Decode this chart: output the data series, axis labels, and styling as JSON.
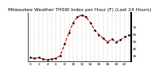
{
  "title": "Milwaukee Weather THSW Index per Hour (F) (Last 24 Hours)",
  "title_fontsize": 4.2,
  "background_color": "#ffffff",
  "plot_bg_color": "#ffffff",
  "line_color": "#cc0000",
  "marker_color": "#000000",
  "grid_color": "#999999",
  "hours": [
    0,
    1,
    2,
    3,
    4,
    5,
    6,
    7,
    8,
    9,
    10,
    11,
    12,
    13,
    14,
    15,
    16,
    17,
    18,
    19,
    20,
    21,
    22,
    23
  ],
  "values": [
    33,
    32,
    33,
    31,
    30,
    31,
    32,
    36,
    52,
    68,
    82,
    90,
    93,
    90,
    82,
    72,
    65,
    60,
    55,
    59,
    55,
    58,
    62,
    65
  ],
  "ylim": [
    28,
    96
  ],
  "yticks": [
    35,
    45,
    55,
    65,
    75
  ],
  "ytick_labels": [
    "35",
    "45",
    "55",
    "65",
    "75"
  ],
  "tick_fontsize": 3.2,
  "ytick_fontsize": 3.2,
  "line_width": 0.8,
  "marker_size": 1.5,
  "grid_vline_positions": [
    0,
    1,
    2,
    3,
    4,
    5,
    6,
    7,
    8,
    9,
    10,
    11,
    12,
    13,
    14,
    15,
    16,
    17,
    18,
    19,
    20,
    21,
    22,
    23
  ]
}
